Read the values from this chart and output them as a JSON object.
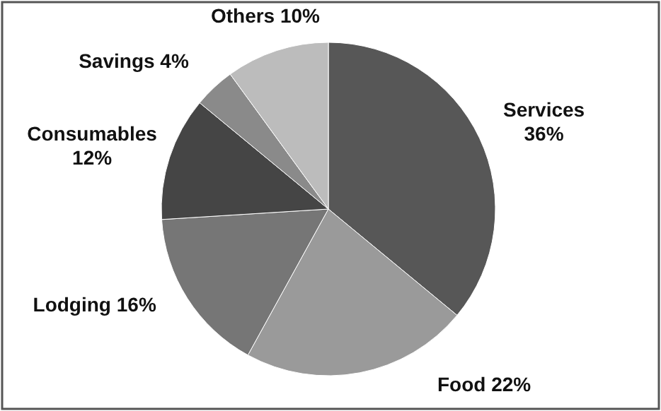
{
  "chart_data": {
    "type": "pie",
    "categories": [
      "Services",
      "Food",
      "Lodging",
      "Consumables",
      "Savings",
      "Others"
    ],
    "values": [
      36,
      22,
      16,
      12,
      4,
      10
    ],
    "value_labels": [
      "36%",
      "22%",
      "16%",
      "12%",
      "4%",
      "10%"
    ],
    "colors": [
      "#575757",
      "#9a9a9a",
      "#767676",
      "#454545",
      "#8a8a8a",
      "#bcbcbc"
    ]
  }
}
